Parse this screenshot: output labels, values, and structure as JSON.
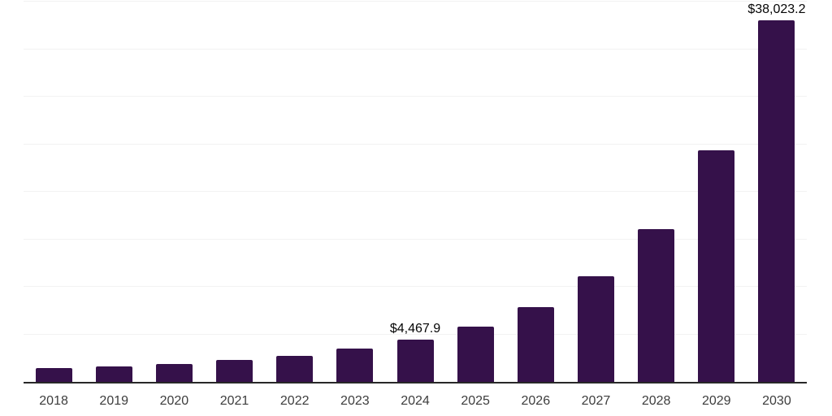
{
  "chart_data": {
    "type": "bar",
    "title": "",
    "xlabel": "",
    "ylabel": "",
    "categories": [
      "2018",
      "2019",
      "2020",
      "2021",
      "2022",
      "2023",
      "2024",
      "2025",
      "2026",
      "2027",
      "2028",
      "2029",
      "2030"
    ],
    "values": [
      1455,
      1590,
      1885,
      2280,
      2765,
      3470,
      4467.9,
      5790,
      7875,
      11130,
      16060,
      24340,
      38023.2
    ],
    "data_labels": [
      {
        "category": "2024",
        "text": "$4,467.9"
      },
      {
        "category": "2030",
        "text": "$38,023.2"
      }
    ],
    "ylim": [
      0,
      40000
    ],
    "gridline_step": 5000,
    "grid": true,
    "legend": false,
    "colors": {
      "bar": "#35114A",
      "gridline": "#F2F2F2",
      "axis_line": "#282828",
      "tick_label": "#3D3D3D",
      "data_label": "#050505",
      "background": "#FFFFFF"
    }
  }
}
